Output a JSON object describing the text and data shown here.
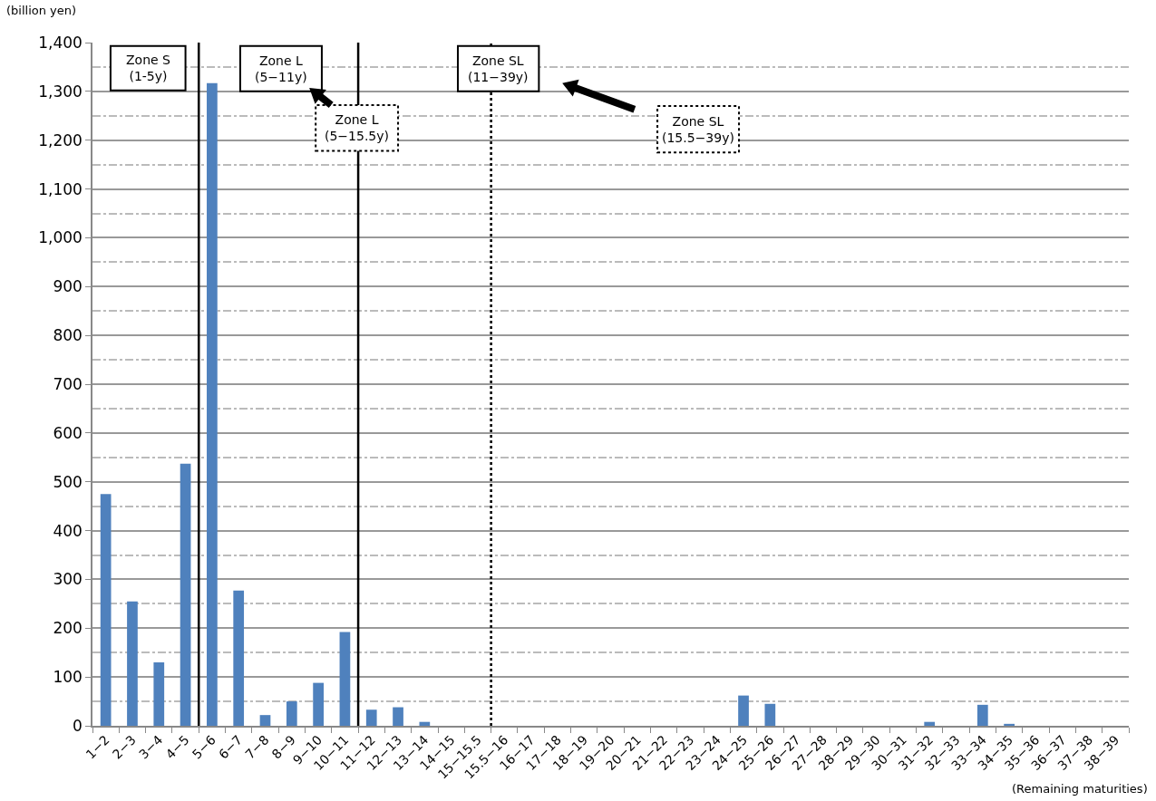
{
  "chart_data": {
    "type": "bar",
    "ylabel": "(billion yen)",
    "xlabel": "(Remaining maturities)",
    "categories": [
      "1−2",
      "2−3",
      "3−4",
      "4−5",
      "5−6",
      "6−7",
      "7−8",
      "8−9",
      "9−10",
      "10−11",
      "11−12",
      "12−13",
      "13−14",
      "14−15",
      "15−15.5",
      "15.5−16",
      "16−17",
      "17−18",
      "18−19",
      "19−20",
      "20−21",
      "21−22",
      "22−23",
      "23−24",
      "24−25",
      "25−26",
      "26−27",
      "27−28",
      "28−29",
      "29−30",
      "30−31",
      "31−32",
      "32−33",
      "33−34",
      "34−35",
      "35−36",
      "36−37",
      "37−38",
      "38−39"
    ],
    "values": [
      475,
      255,
      130,
      537,
      1317,
      277,
      22,
      50,
      88,
      192,
      33,
      38,
      8,
      0,
      0,
      0,
      0,
      0,
      0,
      0,
      0,
      0,
      0,
      0,
      62,
      45,
      0,
      0,
      0,
      0,
      0,
      8,
      0,
      43,
      4,
      0,
      0,
      0,
      0
    ],
    "color": "#4f81bd",
    "ylim": [
      0,
      1400
    ],
    "yticks": [
      0,
      {
        "value": 100,
        "label": "100"
      },
      200,
      300,
      400,
      500,
      600,
      700,
      800,
      900,
      {
        "value": 1000,
        "label": "1,000"
      },
      {
        "value": 1100,
        "label": "1,100"
      },
      {
        "value": 1200,
        "label": "1,200"
      },
      {
        "value": 1300,
        "label": "1,300"
      },
      {
        "value": 1400,
        "label": "1,400"
      }
    ],
    "grid": true,
    "ref_lines": [
      {
        "axis": "x",
        "value": "5−6",
        "line_style": "solid",
        "color": "#000000"
      },
      {
        "axis": "x",
        "value": "11−12",
        "line_style": "solid",
        "color": "#000000"
      },
      {
        "axis": "x",
        "value": "15.5−16",
        "line_style": "dotted",
        "color": "#000000"
      }
    ],
    "annotations": [
      "Zone S\n(1-5y)",
      "Zone L\n(5−11y)",
      "Zone SL\n(11−39y)",
      "Zone L\n(5−15.5y)",
      "Zone SL\n(15.5−39y)"
    ]
  }
}
